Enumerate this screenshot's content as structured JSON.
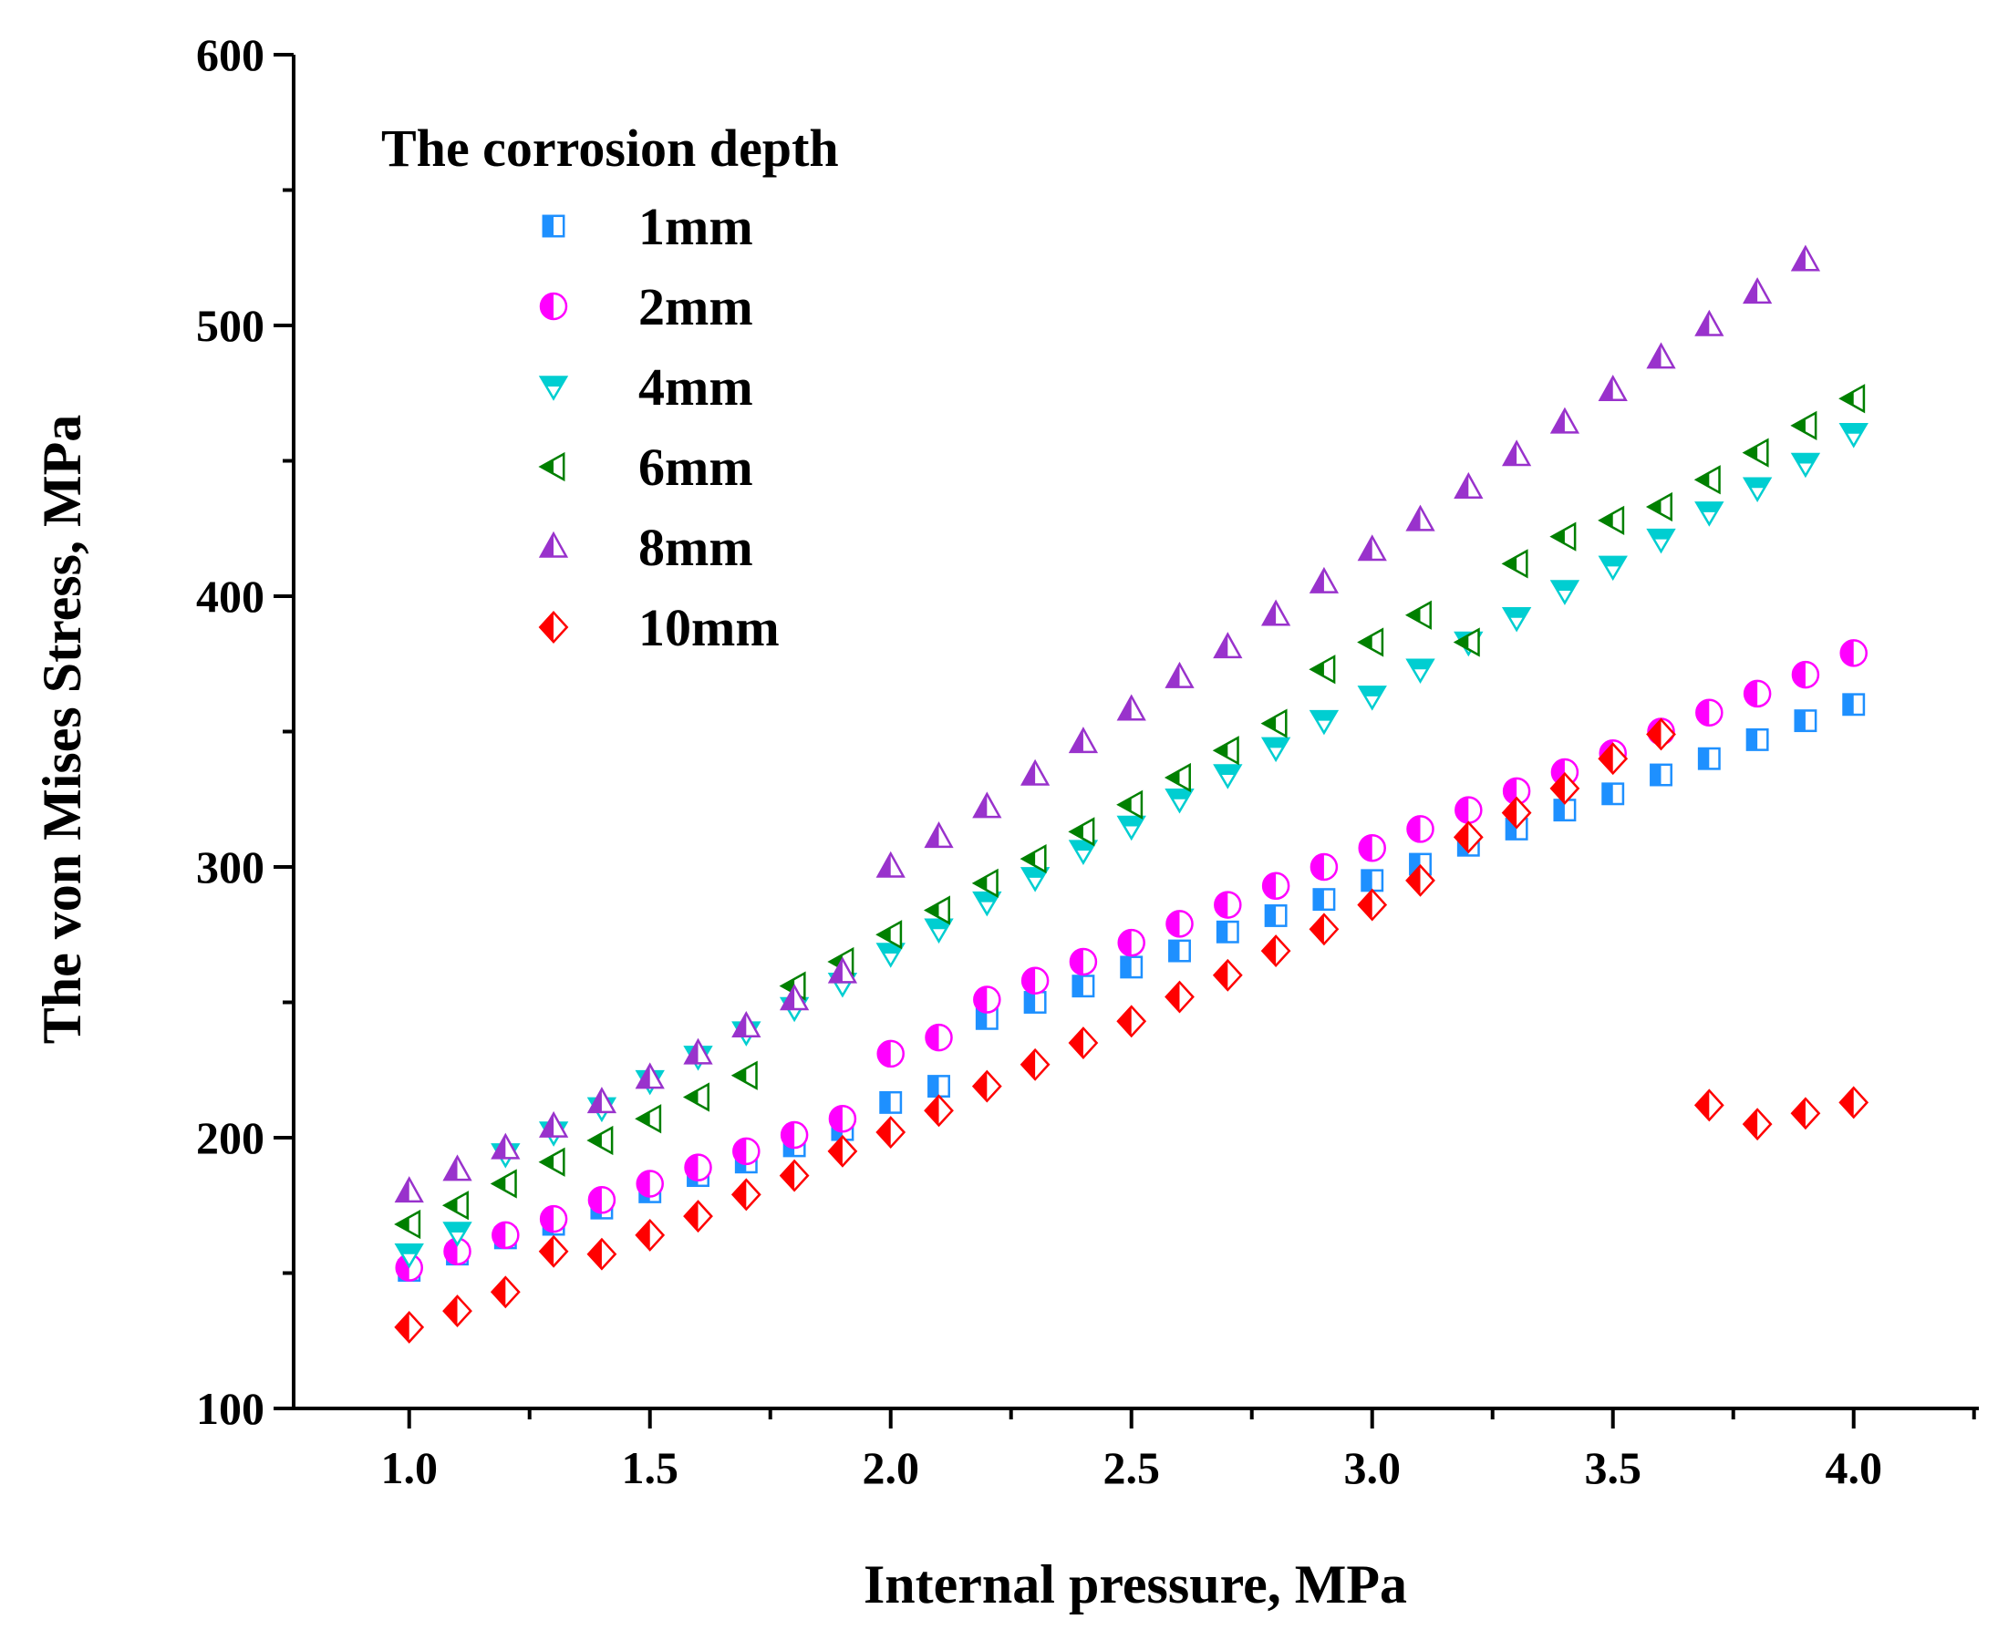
{
  "chart_data": {
    "type": "scatter",
    "title": "",
    "xlabel": "Internal pressure, MPa",
    "ylabel": "The von Mises Stress, MPa",
    "xlim": [
      0.76,
      4.26
    ],
    "ylim": [
      100,
      600
    ],
    "xticks": [
      "1.0",
      "1.5",
      "2.0",
      "2.5",
      "3.0",
      "3.5",
      "4.0"
    ],
    "yticks": [
      "100",
      "200",
      "300",
      "400",
      "500",
      "600"
    ],
    "grid": false,
    "legend": {
      "title": "The corrosion depth",
      "placement": "top-left"
    },
    "x": [
      1.0,
      1.1,
      1.2,
      1.3,
      1.4,
      1.5,
      1.6,
      1.7,
      1.8,
      1.9,
      2.0,
      2.1,
      2.2,
      2.3,
      2.4,
      2.5,
      2.6,
      2.7,
      2.8,
      2.9,
      3.0,
      3.1,
      3.2,
      3.3,
      3.4,
      3.5,
      3.6,
      3.7,
      3.8,
      3.9,
      4.0
    ],
    "series": [
      {
        "name": "1mm",
        "marker": "square",
        "color": "#1E90FF",
        "values": [
          151,
          157,
          163,
          168,
          174,
          180,
          186,
          191,
          197,
          203,
          213,
          219,
          244,
          250,
          256,
          263,
          269,
          276,
          282,
          288,
          295,
          301,
          308,
          314,
          321,
          327,
          334,
          340,
          347,
          354,
          360
        ]
      },
      {
        "name": "2mm",
        "marker": "circle",
        "color": "#FF00FF",
        "values": [
          152,
          158,
          164,
          170,
          177,
          183,
          189,
          195,
          201,
          207,
          231,
          237,
          251,
          258,
          265,
          272,
          279,
          286,
          293,
          300,
          307,
          314,
          321,
          328,
          335,
          342,
          350,
          357,
          364,
          371,
          379
        ]
      },
      {
        "name": "4mm",
        "marker": "triangle-down",
        "color": "#00CED1",
        "values": [
          157,
          165,
          194,
          202,
          211,
          221,
          230,
          239,
          248,
          257,
          268,
          277,
          287,
          296,
          306,
          315,
          325,
          334,
          344,
          354,
          363,
          373,
          383,
          392,
          402,
          411,
          421,
          431,
          440,
          449,
          460
        ]
      },
      {
        "name": "6mm",
        "marker": "triangle-left",
        "color": "#008000",
        "values": [
          168,
          175,
          183,
          191,
          199,
          207,
          215,
          223,
          256,
          265,
          275,
          284,
          294,
          303,
          313,
          323,
          333,
          343,
          353,
          373,
          383,
          393,
          383,
          412,
          422,
          428,
          433,
          443,
          453,
          463,
          473
        ]
      },
      {
        "name": "8mm",
        "marker": "triangle-up",
        "color": "#9932CC",
        "values": [
          180,
          188,
          196,
          204,
          213,
          222,
          231,
          241,
          251,
          261,
          300,
          311,
          322,
          334,
          346,
          358,
          370,
          381,
          393,
          405,
          417,
          428,
          440,
          452,
          464,
          476,
          488,
          500,
          512,
          524,
          null
        ]
      },
      {
        "name": "10mm",
        "marker": "diamond",
        "color": "#FF0000",
        "values": [
          130,
          136,
          143,
          158,
          157,
          164,
          171,
          179,
          186,
          195,
          202,
          210,
          219,
          227,
          235,
          243,
          252,
          260,
          269,
          277,
          286,
          295,
          311,
          320,
          329,
          340,
          349,
          212,
          205,
          209,
          213
        ]
      }
    ]
  }
}
